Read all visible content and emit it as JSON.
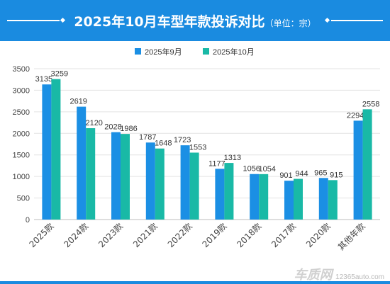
{
  "header": {
    "title": "2025年10月车型年款投诉对比",
    "unit": "（单位：宗）"
  },
  "watermark": {
    "brand": "车质网",
    "domain": "12365auto.com"
  },
  "colors": {
    "header_bg": "#1a8be0",
    "series_sep": "#1b8fe4",
    "series_oct": "#19b9a6"
  },
  "chart_data": {
    "type": "bar",
    "legend_position": "top-center",
    "grid": true,
    "ylim": [
      0,
      3500
    ],
    "yticks": [
      0,
      500,
      1000,
      1500,
      2000,
      2500,
      3000,
      3500
    ],
    "categories": [
      "2025款",
      "2024款",
      "2023款",
      "2021款",
      "2022款",
      "2019款",
      "2018款",
      "2017款",
      "2020款",
      "其他年款"
    ],
    "series": [
      {
        "name": "2025年9月",
        "color": "#1b8fe4",
        "values": [
          3135,
          2619,
          2028,
          1787,
          1723,
          1177,
          1056,
          901,
          965,
          2294
        ]
      },
      {
        "name": "2025年10月",
        "color": "#19b9a6",
        "values": [
          3259,
          2120,
          1986,
          1648,
          1553,
          1313,
          1054,
          944,
          915,
          2558
        ]
      }
    ]
  }
}
